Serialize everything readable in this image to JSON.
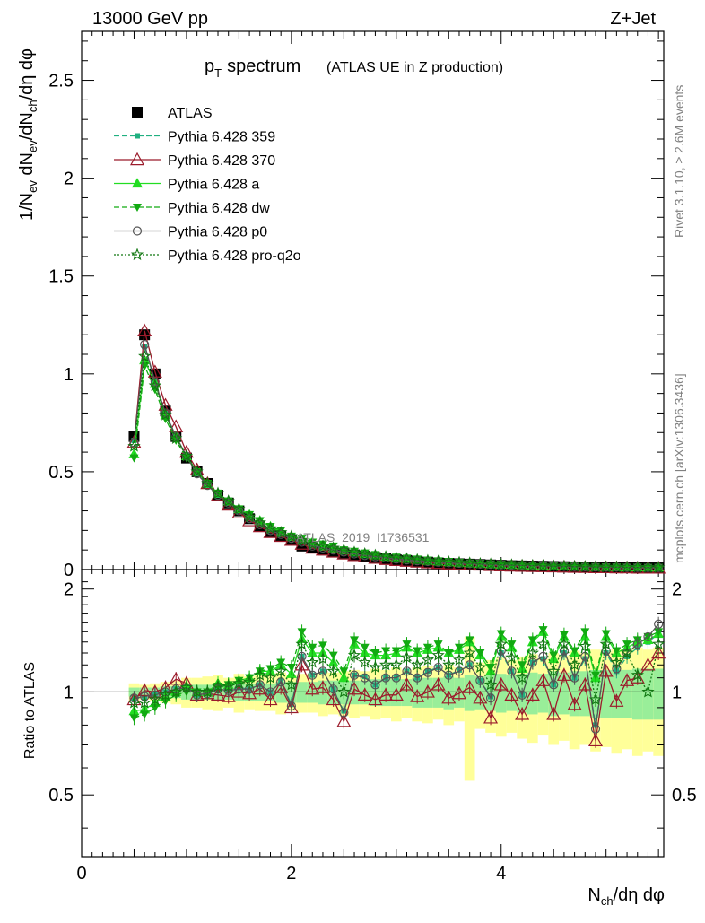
{
  "header": {
    "energy": "13000 GeV pp",
    "process": "Z+Jet",
    "title_main": "p",
    "title_sub": "T",
    "title_word": "spectrum",
    "title_note": "(ATLAS UE in Z production)",
    "watermark": "ATLAS_2019_I1736531",
    "side_right_top": "Rivet 3.1.10, ≥ 2.6M events",
    "side_right_bottom": "mcplots.cern.ch [arXiv:1306.3436]"
  },
  "colors": {
    "atlas": "#000000",
    "p359": "#20b080",
    "p370": "#9b1b2b",
    "a": "#22dd22",
    "dw": "#11aa11",
    "p0": "#555555",
    "proq2o": "#117711",
    "band_yellow": "#ffff99",
    "band_green": "#99ee99"
  },
  "chart_data": [
    {
      "type": "line",
      "panel": "main",
      "ylabel": "1/N_ev dN_ev/dN_ch/dη dφ",
      "xlim": [
        0,
        5.55
      ],
      "ylim": [
        0,
        2.75
      ],
      "yticks": [
        "0",
        "0.5",
        "1",
        "1.5",
        "2",
        "2.5"
      ],
      "x": [
        0.5,
        0.6,
        0.7,
        0.8,
        0.9,
        1.0,
        1.1,
        1.2,
        1.3,
        1.4,
        1.5,
        1.6,
        1.7,
        1.8,
        1.9,
        2.0,
        2.1,
        2.2,
        2.3,
        2.4,
        2.5,
        2.6,
        2.7,
        2.8,
        2.9,
        3.0,
        3.1,
        3.2,
        3.3,
        3.4,
        3.5,
        3.6,
        3.7,
        3.8,
        3.9,
        4.0,
        4.1,
        4.2,
        4.3,
        4.4,
        4.5,
        4.6,
        4.7,
        4.8,
        4.9,
        5.0,
        5.1,
        5.2,
        5.3,
        5.4,
        5.5
      ],
      "series": [
        {
          "name": "ATLAS",
          "key": "atlas",
          "values": [
            0.68,
            1.2,
            1.0,
            0.81,
            0.68,
            0.57,
            0.5,
            0.44,
            0.38,
            0.34,
            0.3,
            0.26,
            0.22,
            0.19,
            0.17,
            0.15,
            0.12,
            0.11,
            0.1,
            0.09,
            0.085,
            0.075,
            0.068,
            0.062,
            0.055,
            0.05,
            0.046,
            0.042,
            0.038,
            0.034,
            0.032,
            0.03,
            0.028,
            0.026,
            0.024,
            0.022,
            0.02,
            0.019,
            0.018,
            0.017,
            0.016,
            0.015,
            0.014,
            0.013,
            0.012,
            0.012,
            0.011,
            0.01,
            0.01,
            0.009,
            0.009
          ]
        },
        {
          "name": "Pythia 6.428 359",
          "key": "p359",
          "values": [
            0.66,
            1.14,
            0.96,
            0.8,
            0.68,
            0.58,
            0.49,
            0.43,
            0.38,
            0.34,
            0.3,
            0.26,
            0.23,
            0.2,
            0.18,
            0.16,
            0.14,
            0.12,
            0.11,
            0.1,
            0.09,
            0.08,
            0.072,
            0.066,
            0.06,
            0.054,
            0.05,
            0.045,
            0.041,
            0.038,
            0.035,
            0.032,
            0.03,
            0.028,
            0.026,
            0.024,
            0.022,
            0.021,
            0.02,
            0.018,
            0.017,
            0.016,
            0.015,
            0.014,
            0.013,
            0.012,
            0.012,
            0.011,
            0.011,
            0.01,
            0.01
          ]
        },
        {
          "name": "Pythia 6.428 370",
          "key": "p370",
          "values": [
            0.65,
            1.22,
            1.01,
            0.84,
            0.73,
            0.6,
            0.51,
            0.44,
            0.38,
            0.33,
            0.29,
            0.25,
            0.22,
            0.19,
            0.17,
            0.15,
            0.13,
            0.11,
            0.1,
            0.09,
            0.08,
            0.072,
            0.065,
            0.058,
            0.052,
            0.047,
            0.043,
            0.039,
            0.035,
            0.032,
            0.029,
            0.027,
            0.025,
            0.023,
            0.021,
            0.019,
            0.018,
            0.017,
            0.016,
            0.015,
            0.014,
            0.013,
            0.012,
            0.011,
            0.01,
            0.01,
            0.009,
            0.009,
            0.008,
            0.008,
            0.008
          ]
        },
        {
          "name": "Pythia 6.428 a",
          "key": "a",
          "values": [
            0.59,
            1.07,
            0.95,
            0.79,
            0.68,
            0.58,
            0.5,
            0.44,
            0.39,
            0.35,
            0.31,
            0.28,
            0.25,
            0.22,
            0.19,
            0.17,
            0.15,
            0.14,
            0.12,
            0.11,
            0.1,
            0.09,
            0.081,
            0.074,
            0.067,
            0.061,
            0.056,
            0.051,
            0.046,
            0.042,
            0.039,
            0.036,
            0.033,
            0.031,
            0.028,
            0.026,
            0.025,
            0.023,
            0.021,
            0.02,
            0.019,
            0.017,
            0.016,
            0.015,
            0.014,
            0.014,
            0.013,
            0.012,
            0.012,
            0.011,
            0.011
          ]
        },
        {
          "name": "Pythia 6.428 dw",
          "key": "dw",
          "values": [
            0.57,
            1.04,
            0.92,
            0.77,
            0.66,
            0.57,
            0.5,
            0.44,
            0.39,
            0.35,
            0.31,
            0.28,
            0.25,
            0.22,
            0.2,
            0.17,
            0.16,
            0.14,
            0.13,
            0.12,
            0.1,
            0.093,
            0.084,
            0.076,
            0.069,
            0.063,
            0.058,
            0.053,
            0.048,
            0.044,
            0.041,
            0.037,
            0.034,
            0.032,
            0.029,
            0.027,
            0.025,
            0.024,
            0.022,
            0.021,
            0.019,
            0.018,
            0.017,
            0.016,
            0.015,
            0.014,
            0.013,
            0.012,
            0.012,
            0.011,
            0.011
          ]
        },
        {
          "name": "Pythia 6.428 p0",
          "key": "p0",
          "values": [
            0.65,
            1.15,
            0.96,
            0.8,
            0.68,
            0.58,
            0.49,
            0.43,
            0.38,
            0.34,
            0.3,
            0.26,
            0.23,
            0.2,
            0.18,
            0.16,
            0.14,
            0.12,
            0.11,
            0.1,
            0.09,
            0.08,
            0.072,
            0.066,
            0.06,
            0.054,
            0.05,
            0.045,
            0.041,
            0.038,
            0.035,
            0.032,
            0.03,
            0.028,
            0.026,
            0.024,
            0.022,
            0.021,
            0.02,
            0.018,
            0.017,
            0.016,
            0.015,
            0.014,
            0.013,
            0.012,
            0.012,
            0.011,
            0.011,
            0.01,
            0.01
          ]
        },
        {
          "name": "Pythia 6.428 pro-q2o",
          "key": "proq2o",
          "values": [
            0.63,
            1.09,
            0.94,
            0.79,
            0.67,
            0.58,
            0.5,
            0.44,
            0.39,
            0.35,
            0.31,
            0.27,
            0.24,
            0.21,
            0.19,
            0.17,
            0.15,
            0.13,
            0.12,
            0.11,
            0.1,
            0.088,
            0.08,
            0.073,
            0.066,
            0.06,
            0.055,
            0.05,
            0.046,
            0.042,
            0.039,
            0.036,
            0.033,
            0.03,
            0.028,
            0.026,
            0.024,
            0.022,
            0.021,
            0.02,
            0.018,
            0.017,
            0.016,
            0.015,
            0.014,
            0.013,
            0.013,
            0.012,
            0.011,
            0.011,
            0.01
          ]
        }
      ]
    },
    {
      "type": "line",
      "panel": "ratio",
      "ylabel": "Ratio to ATLAS",
      "xlabel": "N_ch/dη dφ",
      "xlim": [
        0,
        5.55
      ],
      "ylim": [
        0.33,
        2.28
      ],
      "yticks": [
        "0.5",
        "1",
        "2"
      ],
      "xticks": [
        "0",
        "2",
        "4"
      ],
      "x": [
        0.5,
        0.6,
        0.7,
        0.8,
        0.9,
        1.0,
        1.1,
        1.2,
        1.3,
        1.4,
        1.5,
        1.6,
        1.7,
        1.8,
        1.9,
        2.0,
        2.1,
        2.2,
        2.3,
        2.4,
        2.5,
        2.6,
        2.7,
        2.8,
        2.9,
        3.0,
        3.1,
        3.2,
        3.3,
        3.4,
        3.5,
        3.6,
        3.7,
        3.8,
        3.9,
        4.0,
        4.1,
        4.2,
        4.3,
        4.4,
        4.5,
        4.6,
        4.7,
        4.8,
        4.9,
        5.0,
        5.1,
        5.2,
        5.3,
        5.4,
        5.5
      ],
      "band_yellow_half": [
        0.06,
        0.05,
        0.06,
        0.07,
        0.08,
        0.1,
        0.1,
        0.11,
        0.12,
        0.1,
        0.13,
        0.11,
        0.12,
        0.12,
        0.14,
        0.12,
        0.13,
        0.13,
        0.15,
        0.14,
        0.15,
        0.16,
        0.15,
        0.17,
        0.16,
        0.18,
        0.16,
        0.18,
        0.19,
        0.17,
        0.2,
        0.18,
        0.45,
        0.22,
        0.24,
        0.26,
        0.24,
        0.27,
        0.29,
        0.25,
        0.3,
        0.28,
        0.32,
        0.3,
        0.33,
        0.31,
        0.34,
        0.32,
        0.35,
        0.33,
        0.35
      ],
      "band_green_half": [
        0.03,
        0.03,
        0.03,
        0.04,
        0.04,
        0.05,
        0.05,
        0.05,
        0.06,
        0.05,
        0.06,
        0.06,
        0.06,
        0.06,
        0.07,
        0.07,
        0.07,
        0.07,
        0.08,
        0.08,
        0.08,
        0.08,
        0.08,
        0.09,
        0.09,
        0.09,
        0.09,
        0.1,
        0.1,
        0.1,
        0.11,
        0.1,
        0.12,
        0.11,
        0.12,
        0.13,
        0.12,
        0.13,
        0.14,
        0.13,
        0.15,
        0.14,
        0.15,
        0.15,
        0.16,
        0.16,
        0.16,
        0.16,
        0.17,
        0.17,
        0.17
      ],
      "series": [
        {
          "name": "Pythia 6.428 359",
          "key": "p359",
          "values": [
            0.96,
            0.96,
            0.98,
            1.0,
            1.02,
            1.03,
            0.98,
            0.99,
            1.02,
            1.01,
            1.03,
            1.02,
            1.05,
            1.0,
            1.08,
            0.92,
            1.27,
            1.12,
            1.15,
            1.02,
            0.88,
            1.12,
            1.11,
            1.05,
            1.1,
            1.1,
            1.15,
            1.1,
            1.15,
            1.18,
            1.12,
            1.16,
            1.2,
            1.08,
            0.97,
            1.3,
            1.15,
            0.98,
            1.22,
            1.25,
            1.05,
            1.3,
            1.1,
            1.25,
            0.8,
            1.3,
            1.15,
            1.27,
            1.35,
            1.4,
            1.48
          ]
        },
        {
          "name": "Pythia 6.428 370",
          "key": "p370",
          "values": [
            0.95,
            1.01,
            1.0,
            1.03,
            1.09,
            1.06,
            0.98,
            0.99,
            0.98,
            0.97,
            1.0,
            0.99,
            1.02,
            0.95,
            1.03,
            0.9,
            1.2,
            1.02,
            1.03,
            0.95,
            0.82,
            1.02,
            0.98,
            0.95,
            0.98,
            0.98,
            1.05,
            0.97,
            1.0,
            1.05,
            0.96,
            0.99,
            1.03,
            0.96,
            0.84,
            1.05,
            0.98,
            0.86,
            0.98,
            1.08,
            0.86,
            1.12,
            0.92,
            1.05,
            0.72,
            1.15,
            0.94,
            1.08,
            1.1,
            1.2,
            1.3
          ]
        },
        {
          "name": "Pythia 6.428 a",
          "key": "a",
          "values": [
            0.88,
            0.89,
            0.93,
            0.97,
            1.0,
            1.04,
            1.0,
            1.0,
            1.06,
            1.05,
            1.08,
            1.1,
            1.15,
            1.15,
            1.2,
            1.13,
            1.43,
            1.3,
            1.3,
            1.22,
            1.1,
            1.38,
            1.3,
            1.28,
            1.28,
            1.3,
            1.35,
            1.3,
            1.33,
            1.35,
            1.3,
            1.33,
            1.4,
            1.28,
            1.15,
            1.45,
            1.35,
            1.17,
            1.4,
            1.5,
            1.25,
            1.45,
            1.3,
            1.45,
            1.1,
            1.45,
            1.3,
            1.35,
            1.4,
            1.42,
            1.48
          ]
        },
        {
          "name": "Pythia 6.428 dw",
          "key": "dw",
          "values": [
            0.84,
            0.86,
            0.9,
            0.94,
            0.98,
            1.0,
            1.0,
            1.0,
            1.04,
            1.05,
            1.08,
            1.1,
            1.15,
            1.17,
            1.22,
            1.18,
            1.5,
            1.35,
            1.37,
            1.28,
            1.15,
            1.42,
            1.35,
            1.3,
            1.32,
            1.32,
            1.38,
            1.32,
            1.35,
            1.38,
            1.3,
            1.35,
            1.42,
            1.3,
            1.18,
            1.48,
            1.38,
            1.2,
            1.42,
            1.52,
            1.28,
            1.47,
            1.32,
            1.5,
            1.12,
            1.48,
            1.32,
            1.38,
            1.42,
            1.45,
            1.5
          ]
        },
        {
          "name": "Pythia 6.428 p0",
          "key": "p0",
          "values": [
            0.96,
            0.97,
            0.98,
            1.0,
            1.02,
            1.03,
            0.98,
            0.99,
            1.02,
            1.01,
            1.02,
            1.02,
            1.05,
            1.0,
            1.07,
            0.91,
            1.27,
            1.12,
            1.15,
            1.02,
            0.87,
            1.12,
            1.1,
            1.05,
            1.1,
            1.1,
            1.15,
            1.1,
            1.14,
            1.18,
            1.12,
            1.15,
            1.2,
            1.08,
            0.96,
            1.32,
            1.15,
            0.98,
            1.22,
            1.27,
            1.05,
            1.32,
            1.1,
            1.27,
            0.78,
            1.32,
            1.17,
            1.3,
            1.38,
            1.45,
            1.58
          ]
        },
        {
          "name": "Pythia 6.428 pro-q2o",
          "key": "proq2o",
          "values": [
            0.93,
            0.93,
            0.95,
            0.98,
            1.0,
            1.03,
            1.0,
            1.0,
            1.04,
            1.04,
            1.06,
            1.07,
            1.12,
            1.1,
            1.15,
            1.05,
            1.38,
            1.22,
            1.25,
            1.15,
            1.0,
            1.28,
            1.22,
            1.18,
            1.2,
            1.2,
            1.26,
            1.2,
            1.24,
            1.28,
            1.2,
            1.24,
            1.3,
            1.18,
            1.05,
            1.38,
            1.26,
            1.1,
            1.3,
            1.38,
            1.15,
            1.38,
            1.2,
            1.36,
            0.95,
            1.38,
            1.22,
            1.3,
            1.12,
            1.0,
            1.38
          ]
        }
      ]
    }
  ]
}
